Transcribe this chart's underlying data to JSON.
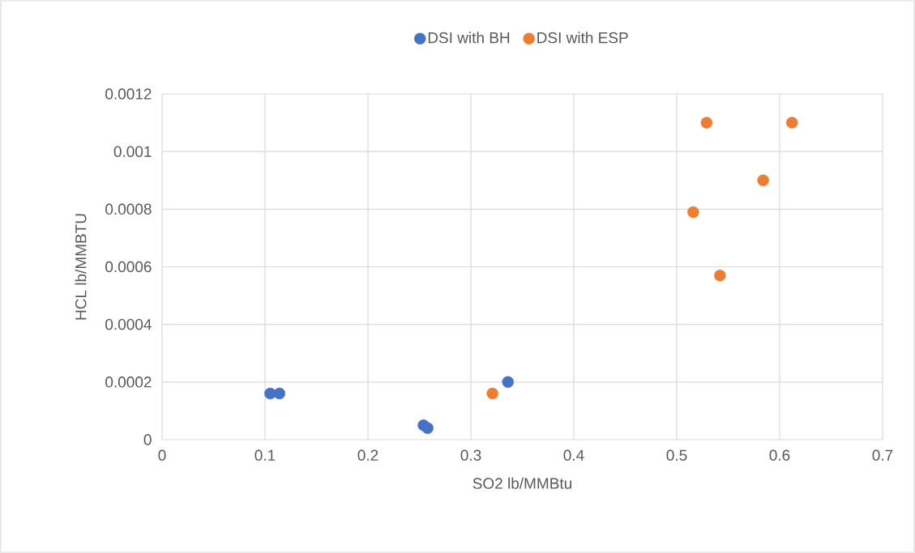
{
  "chart_data": {
    "type": "scatter",
    "xlabel": "SO2 lb/MMBtu",
    "ylabel": "HCL lb/MMBTU",
    "series": [
      {
        "name": "DSI with BH",
        "color": "#4472c4",
        "x": [
          0.105,
          0.114,
          0.254,
          0.258,
          0.336
        ],
        "values": [
          0.00016,
          0.00016,
          5e-05,
          4e-05,
          0.0002
        ]
      },
      {
        "name": "DSI with ESP",
        "color": "#ed7d31",
        "x": [
          0.321,
          0.529,
          0.612,
          0.584,
          0.516,
          0.542
        ],
        "values": [
          0.00016,
          0.0011,
          0.0011,
          0.0009,
          0.00079,
          0.00057
        ]
      }
    ],
    "xlim": [
      0,
      0.7
    ],
    "xticks": [
      0,
      0.1,
      0.2,
      0.3,
      0.4,
      0.5,
      0.6,
      0.7
    ],
    "ylim": [
      0,
      0.0012
    ],
    "yticks": [
      0,
      0.0002,
      0.0004,
      0.0006,
      0.0008,
      0.001,
      0.0012
    ],
    "grid": true,
    "legend": "top",
    "marker": "circle"
  }
}
